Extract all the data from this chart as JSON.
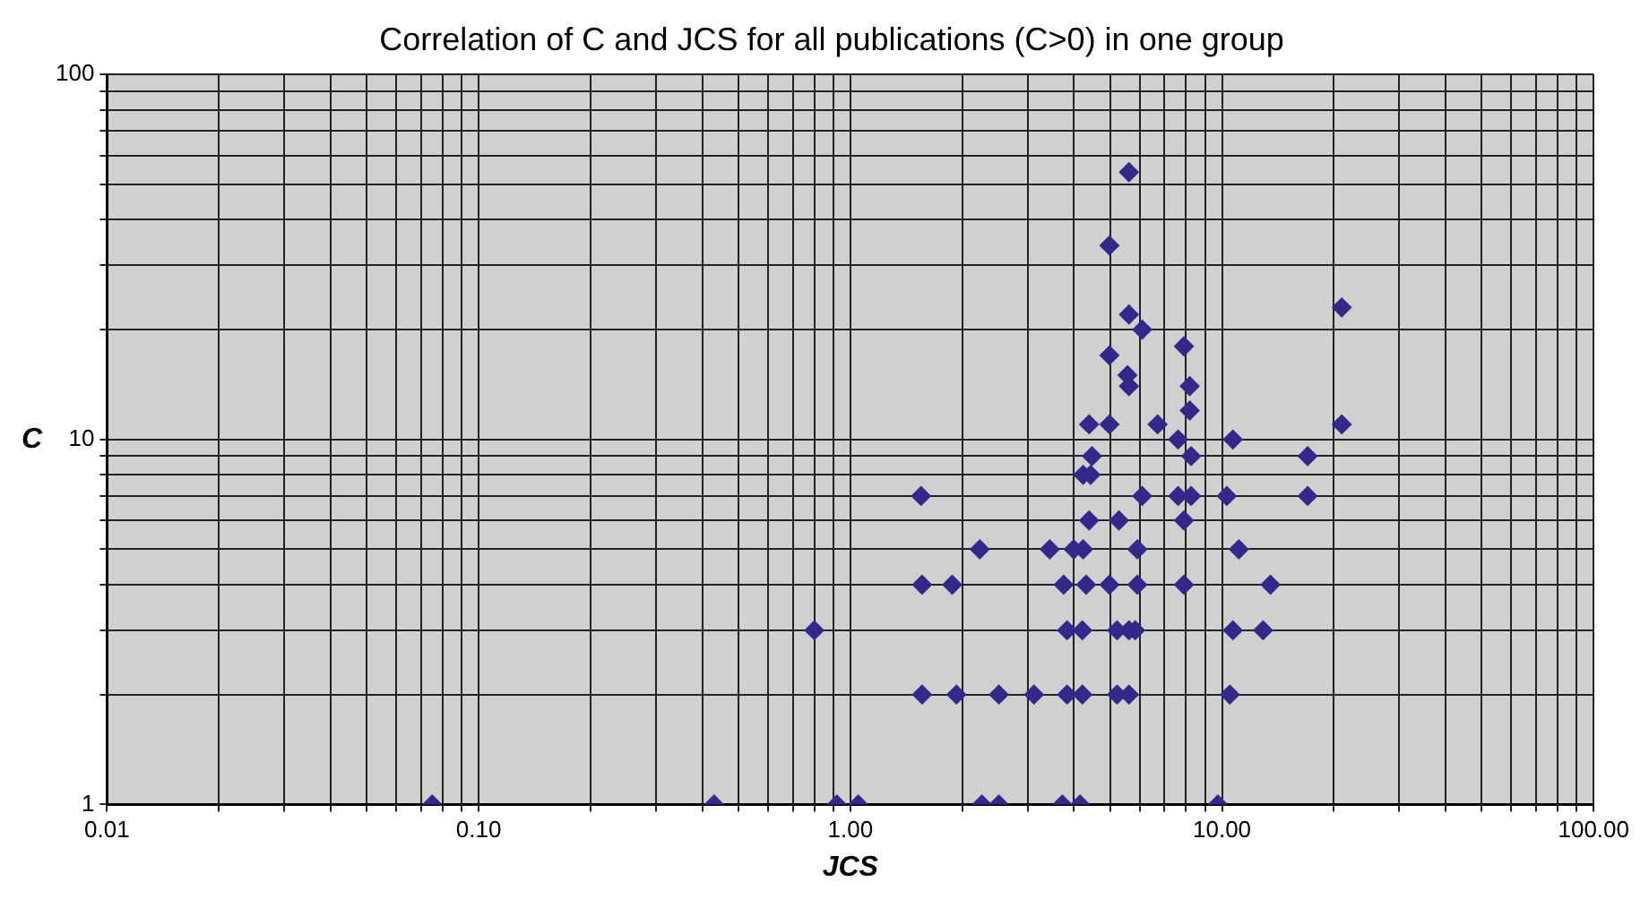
{
  "chart_data": {
    "type": "scatter",
    "title": "Correlation of C and JCS for all publications (C>0) in one group",
    "xlabel": "JCS",
    "ylabel": "C",
    "log": "xy",
    "grid": true,
    "marker": "diamond",
    "legend": false,
    "xlim": [
      0.01,
      100
    ],
    "ylim": [
      1,
      100
    ],
    "xticks": [
      {
        "value": 0.01,
        "label": "0.01"
      },
      {
        "value": 0.02,
        "label": null
      },
      {
        "value": 0.03,
        "label": null
      },
      {
        "value": 0.04,
        "label": null
      },
      {
        "value": 0.05,
        "label": null
      },
      {
        "value": 0.06,
        "label": null
      },
      {
        "value": 0.07,
        "label": null
      },
      {
        "value": 0.08,
        "label": null
      },
      {
        "value": 0.09,
        "label": null
      },
      {
        "value": 0.1,
        "label": "0.10"
      },
      {
        "value": 0.2,
        "label": null
      },
      {
        "value": 0.3,
        "label": null
      },
      {
        "value": 0.4,
        "label": null
      },
      {
        "value": 0.5,
        "label": null
      },
      {
        "value": 0.6,
        "label": null
      },
      {
        "value": 0.7,
        "label": null
      },
      {
        "value": 0.8,
        "label": null
      },
      {
        "value": 0.9,
        "label": null
      },
      {
        "value": 1,
        "label": "1.00"
      },
      {
        "value": 2,
        "label": null
      },
      {
        "value": 3,
        "label": null
      },
      {
        "value": 4,
        "label": null
      },
      {
        "value": 5,
        "label": null
      },
      {
        "value": 6,
        "label": null
      },
      {
        "value": 7,
        "label": null
      },
      {
        "value": 8,
        "label": null
      },
      {
        "value": 9,
        "label": null
      },
      {
        "value": 10,
        "label": "10.00"
      },
      {
        "value": 20,
        "label": null
      },
      {
        "value": 30,
        "label": null
      },
      {
        "value": 40,
        "label": null
      },
      {
        "value": 50,
        "label": null
      },
      {
        "value": 60,
        "label": null
      },
      {
        "value": 70,
        "label": null
      },
      {
        "value": 80,
        "label": null
      },
      {
        "value": 90,
        "label": null
      },
      {
        "value": 100,
        "label": "100.00"
      }
    ],
    "yticks": [
      1,
      {
        "value": 2,
        "label": null
      },
      {
        "value": 3,
        "label": null
      },
      {
        "value": 4,
        "label": null
      },
      {
        "value": 5,
        "label": null
      },
      {
        "value": 6,
        "label": null
      },
      {
        "value": 7,
        "label": null
      },
      {
        "value": 8,
        "label": null
      },
      {
        "value": 9,
        "label": null
      },
      10,
      {
        "value": 20,
        "label": null
      },
      {
        "value": 30,
        "label": null
      },
      {
        "value": 40,
        "label": null
      },
      {
        "value": 50,
        "label": null
      },
      {
        "value": 60,
        "label": null
      },
      {
        "value": 70,
        "label": null
      },
      {
        "value": 80,
        "label": null
      },
      {
        "value": 90,
        "label": null
      },
      100
    ],
    "series": [
      {
        "color": "#33298a",
        "x": [
          0.075,
          0.43,
          0.92,
          1.05,
          2.26,
          2.51,
          3.72,
          4.15,
          9.75,
          0.8,
          1.55,
          1.56,
          1.88,
          3.75,
          4.31,
          4.98,
          5.92,
          7.9,
          13.5,
          1.56,
          1.93,
          2.51,
          3.12,
          3.83,
          4.21,
          5.22,
          5.62,
          10.5,
          3.83,
          4.21,
          5.22,
          5.62,
          5.84,
          10.7,
          12.9,
          2.23,
          3.44,
          3.99,
          4.23,
          5.92,
          11.1,
          4.39,
          5.28,
          7.9,
          6.1,
          7.62,
          8.26,
          10.3,
          17.0,
          4.23,
          4.43,
          5.62,
          4.98,
          5.62,
          6.1,
          21.0,
          7.9,
          4.98,
          5.57,
          5.62,
          8.19,
          8.19,
          4.39,
          4.98,
          6.71,
          21.0,
          7.62,
          10.7,
          4.47,
          8.26,
          17.0
        ],
        "values": [
          1,
          1,
          1,
          1,
          1,
          1,
          1,
          1,
          1,
          3,
          7,
          4,
          4,
          4,
          4,
          4,
          4,
          4,
          4,
          2,
          2,
          2,
          2,
          2,
          2,
          2,
          2,
          2,
          3,
          3,
          3,
          3,
          3,
          3,
          3,
          5,
          5,
          5,
          5,
          5,
          5,
          6,
          6,
          6,
          7,
          7,
          7,
          7,
          7,
          8,
          8,
          54,
          34,
          22,
          20,
          23,
          18,
          17,
          15,
          14,
          14,
          12,
          11,
          11,
          11,
          11,
          10,
          10,
          9,
          9,
          9
        ]
      }
    ]
  }
}
